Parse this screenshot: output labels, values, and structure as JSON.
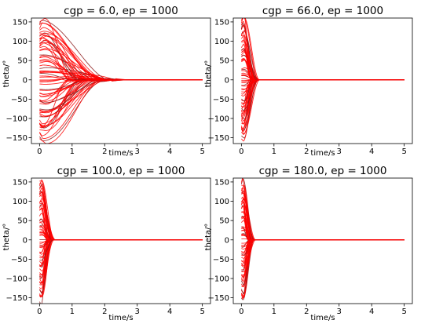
{
  "chart_data": [
    {
      "type": "line",
      "title": "cgp = 6.0, ep = 1000",
      "xlabel": "time/s",
      "ylabel": "theta/°",
      "xlim": [
        -0.25,
        5.25
      ],
      "ylim": [
        -165,
        160
      ],
      "xticks": [
        0,
        1,
        2,
        3,
        4,
        5
      ],
      "yticks": [
        -150,
        -100,
        -50,
        0,
        50,
        100,
        150
      ],
      "grid": false,
      "series_color": "#ff0000",
      "outline_color": "#8b1a1a",
      "series_summary": {
        "count": 70,
        "initial_theta_range": [
          -150,
          150
        ],
        "settle_time": 2.5,
        "final_value": 0
      }
    },
    {
      "type": "line",
      "title": "cgp = 66.0, ep = 1000",
      "xlabel": "time/s",
      "ylabel": "theta/°",
      "xlim": [
        -0.25,
        5.25
      ],
      "ylim": [
        -165,
        160
      ],
      "xticks": [
        0,
        1,
        2,
        3,
        4,
        5
      ],
      "yticks": [
        -150,
        -100,
        -50,
        0,
        50,
        100,
        150
      ],
      "grid": false,
      "series_color": "#ff0000",
      "outline_color": "#8b1a1a",
      "series_summary": {
        "count": 70,
        "initial_theta_range": [
          -150,
          150
        ],
        "settle_time": 0.6,
        "final_value": 0
      }
    },
    {
      "type": "line",
      "title": "cgp = 100.0, ep = 1000",
      "xlabel": "time/s",
      "ylabel": "theta/°",
      "xlim": [
        -0.25,
        5.25
      ],
      "ylim": [
        -165,
        160
      ],
      "xticks": [
        0,
        1,
        2,
        3,
        4,
        5
      ],
      "yticks": [
        -150,
        -100,
        -50,
        0,
        50,
        100,
        150
      ],
      "grid": false,
      "series_color": "#ff0000",
      "outline_color": "#8b1a1a",
      "series_summary": {
        "count": 70,
        "initial_theta_range": [
          -150,
          150
        ],
        "settle_time": 0.5,
        "final_value": 0
      }
    },
    {
      "type": "line",
      "title": "cgp = 180.0, ep = 1000",
      "xlabel": "time/s",
      "ylabel": "theta/°",
      "xlim": [
        -0.25,
        5.25
      ],
      "ylim": [
        -165,
        160
      ],
      "xticks": [
        0,
        1,
        2,
        3,
        4,
        5
      ],
      "yticks": [
        -150,
        -100,
        -50,
        0,
        50,
        100,
        150
      ],
      "grid": false,
      "series_color": "#ff0000",
      "outline_color": "#8b1a1a",
      "series_summary": {
        "count": 70,
        "initial_theta_range": [
          -150,
          150
        ],
        "settle_time": 0.45,
        "final_value": 0
      }
    }
  ]
}
